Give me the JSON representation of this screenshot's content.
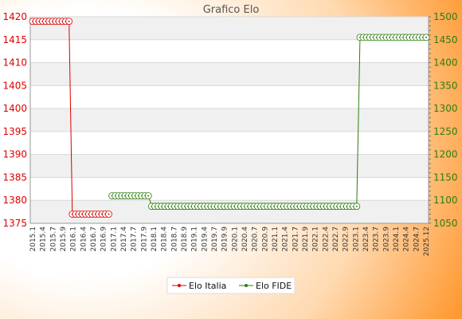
{
  "chart_data": {
    "type": "line",
    "title": "Grafico Elo",
    "y_left": {
      "min": 1375,
      "max": 1420,
      "ticks": [
        1375,
        1380,
        1385,
        1390,
        1395,
        1400,
        1405,
        1410,
        1415,
        1420
      ]
    },
    "y_right": {
      "min": 1050,
      "max": 1500,
      "ticks": [
        1050,
        1100,
        1150,
        1200,
        1250,
        1300,
        1350,
        1400,
        1450,
        1500
      ]
    },
    "x_count": 120,
    "x_tick_labels": [
      "2015.1",
      "2015.4",
      "2015.7",
      "2015.9",
      "2016.1",
      "2016.4",
      "2016.7",
      "2016.9",
      "2017.1",
      "2017.4",
      "2017.7",
      "2017.9",
      "2018.1",
      "2018.4",
      "2018.7",
      "2018.9",
      "2019.1",
      "2019.4",
      "2019.7",
      "2019.9",
      "2020.1",
      "2020.4",
      "2020.7",
      "2020.9",
      "2021.1",
      "2021.4",
      "2021.7",
      "2021.9",
      "2022.1",
      "2022.4",
      "2022.7",
      "2022.9",
      "2023.1",
      "2023.4",
      "2023.7",
      "2023.9",
      "2024.1",
      "2024.4",
      "2024.7",
      "2025.12"
    ],
    "series": [
      {
        "name": "Elo Italia",
        "axis": "left",
        "color": "#dd0000",
        "segments": [
          {
            "x_from": 0,
            "x_to": 11,
            "value": 1419
          },
          {
            "x_from": 12,
            "x_to": 23,
            "value": 1377
          }
        ]
      },
      {
        "name": "Elo FIDE",
        "axis": "right",
        "color": "#2e7d10",
        "segments": [
          {
            "x_from": 24,
            "x_to": 35,
            "value": 1110
          },
          {
            "x_from": 36,
            "x_to": 98,
            "value": 1087
          },
          {
            "x_from": 99,
            "x_to": 119,
            "value": 1455
          }
        ]
      }
    ],
    "legend": {
      "position": "bottom-center",
      "entries": [
        "Elo Italia",
        "Elo FIDE"
      ]
    },
    "grid": true
  }
}
